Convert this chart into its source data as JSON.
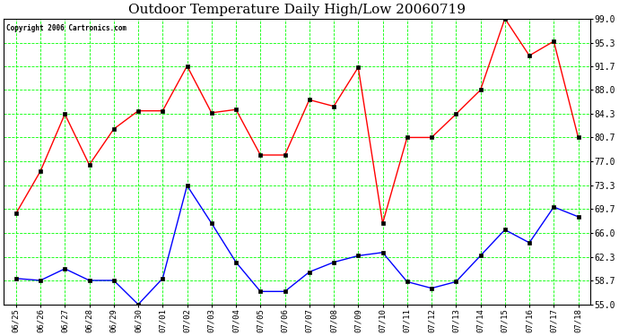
{
  "title": "Outdoor Temperature Daily High/Low 20060719",
  "copyright": "Copyright 2006 Cartronics.com",
  "x_labels": [
    "06/25",
    "06/26",
    "06/27",
    "06/28",
    "06/29",
    "06/30",
    "07/01",
    "07/02",
    "07/03",
    "07/04",
    "07/05",
    "07/06",
    "07/07",
    "07/08",
    "07/09",
    "07/10",
    "07/11",
    "07/12",
    "07/13",
    "07/14",
    "07/15",
    "07/16",
    "07/17",
    "07/18"
  ],
  "high_temps": [
    69.0,
    75.5,
    84.3,
    76.5,
    82.0,
    84.8,
    84.8,
    91.7,
    84.5,
    85.0,
    78.0,
    78.0,
    86.5,
    85.5,
    91.5,
    67.5,
    80.7,
    80.7,
    84.3,
    88.0,
    99.0,
    93.3,
    95.5,
    80.7
  ],
  "low_temps": [
    59.0,
    58.7,
    60.5,
    58.7,
    58.7,
    55.0,
    59.0,
    73.3,
    67.5,
    61.5,
    57.0,
    57.0,
    60.0,
    61.5,
    62.5,
    63.0,
    58.5,
    57.5,
    58.5,
    62.5,
    66.5,
    64.5,
    70.0,
    68.5
  ],
  "high_color": "#ff0000",
  "low_color": "#0000ff",
  "bg_color": "#ffffff",
  "plot_bg_color": "#ffffff",
  "grid_color": "#00ff00",
  "title_fontsize": 11,
  "ytick_vals": [
    55.0,
    58.7,
    62.3,
    66.0,
    69.7,
    73.3,
    77.0,
    80.7,
    84.3,
    88.0,
    91.7,
    95.3,
    99.0
  ],
  "ymin": 55.0,
  "ymax": 99.0
}
